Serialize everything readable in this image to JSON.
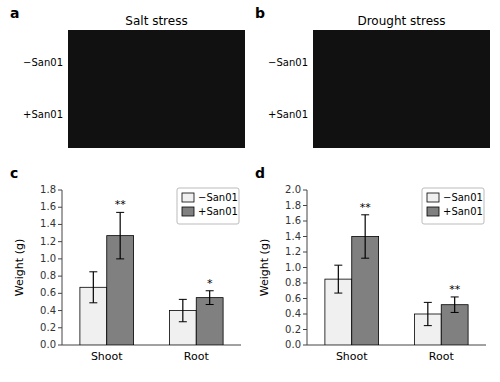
{
  "chart_data": [
    {
      "type": "image",
      "title": "Salt stress",
      "annotations": [
        "a",
        "−San01",
        "+San01"
      ]
    },
    {
      "type": "image",
      "title": "Drought stress",
      "annotations": [
        "b",
        "−San01",
        "+San01"
      ]
    },
    {
      "type": "bar",
      "annotations": [
        "c"
      ],
      "categories": [
        "Shoot",
        "Root"
      ],
      "series": [
        {
          "name": "−San01",
          "color": "#f0f0f0",
          "values": [
            0.67,
            0.4
          ],
          "errors": [
            0.18,
            0.13
          ]
        },
        {
          "name": "+San01",
          "color": "#808080",
          "values": [
            1.27,
            0.55
          ],
          "errors": [
            0.27,
            0.08
          ],
          "annotations": [
            "**",
            "*"
          ]
        }
      ],
      "y_label": "Weight (g)",
      "ylim": [
        0,
        1.8
      ],
      "yticks": [
        {
          "value": 0,
          "label": "0.0"
        },
        0.2,
        0.4,
        0.6,
        0.8,
        {
          "value": 1,
          "label": "1.0"
        },
        1.2,
        1.4,
        1.6,
        1.8
      ],
      "grid": false,
      "legend": "upper-right"
    },
    {
      "type": "bar",
      "annotations": [
        "d"
      ],
      "categories": [
        "Shoot",
        "Root"
      ],
      "series": [
        {
          "name": "−San01",
          "color": "#f0f0f0",
          "values": [
            0.85,
            0.4
          ],
          "errors": [
            0.18,
            0.15
          ]
        },
        {
          "name": "+San01",
          "color": "#808080",
          "values": [
            1.4,
            0.52
          ],
          "errors": [
            0.28,
            0.1
          ],
          "annotations": [
            "**",
            "**"
          ]
        }
      ],
      "y_label": "Weight (g)",
      "ylim": [
        0,
        2.0
      ],
      "yticks": [
        {
          "value": 0,
          "label": "0.0"
        },
        0.2,
        0.4,
        0.6,
        0.8,
        {
          "value": 1,
          "label": "1.0"
        },
        1.2,
        1.4,
        1.6,
        1.8,
        {
          "value": 2,
          "label": "2.0"
        }
      ],
      "grid": false,
      "legend": "upper-right"
    }
  ]
}
